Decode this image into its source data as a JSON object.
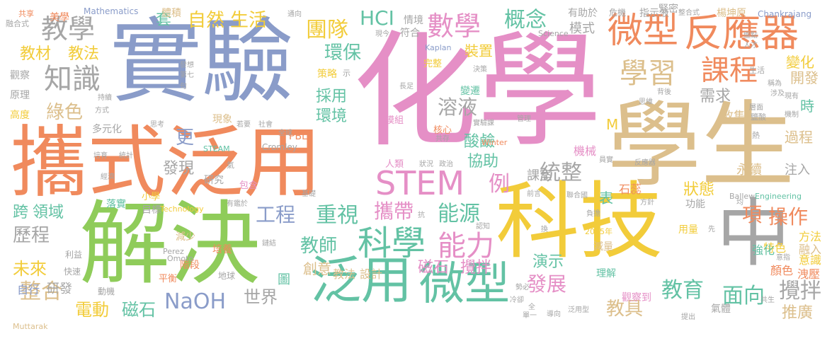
{
  "palette": {
    "green": "#8fcc5a",
    "orange": "#f08a5d",
    "blue": "#8a9cc9",
    "pink": "#e58fc6",
    "yellow": "#f2cc3a",
    "tan": "#dcbf8c",
    "teal": "#63c2a4",
    "gray": "#a6a6a6"
  },
  "words": [
    {
      "t": "化學",
      "c": "pink"
    },
    {
      "t": "學生",
      "c": "tan"
    },
    {
      "t": "實驗",
      "c": "blue"
    },
    {
      "t": "攜式泛用",
      "c": "orange"
    },
    {
      "t": "解決",
      "c": "green"
    },
    {
      "t": "科技",
      "c": "yellow"
    },
    {
      "t": "中",
      "c": "gray"
    },
    {
      "t": "泛用",
      "c": "teal"
    },
    {
      "t": "微型",
      "c": "teal"
    },
    {
      "t": "微型",
      "c": "orange"
    },
    {
      "t": "反應器",
      "c": "orange"
    },
    {
      "t": "學習",
      "c": "tan"
    },
    {
      "t": "課程",
      "c": "orange"
    },
    {
      "t": "STEM",
      "c": "pink"
    },
    {
      "t": "科學",
      "c": "teal"
    },
    {
      "t": "能力",
      "c": "pink"
    },
    {
      "t": "教學",
      "c": "gray"
    },
    {
      "t": "知識",
      "c": "gray"
    },
    {
      "t": "數學",
      "c": "pink"
    },
    {
      "t": "HCI",
      "c": "teal"
    },
    {
      "t": "團隊",
      "c": "yellow"
    },
    {
      "t": "概念",
      "c": "teal"
    },
    {
      "t": "自然",
      "c": "yellow"
    },
    {
      "t": "生活",
      "c": "yellow"
    },
    {
      "t": "教材",
      "c": "yellow"
    },
    {
      "t": "教法",
      "c": "yellow"
    },
    {
      "t": "綠色",
      "c": "tan"
    },
    {
      "t": "環保",
      "c": "teal"
    },
    {
      "t": "溶液",
      "c": "gray"
    },
    {
      "t": "採用",
      "c": "teal"
    },
    {
      "t": "環境",
      "c": "teal"
    },
    {
      "t": "工程",
      "c": "blue"
    },
    {
      "t": "重視",
      "c": "teal"
    },
    {
      "t": "攜帶",
      "c": "pink"
    },
    {
      "t": "能源",
      "c": "teal"
    },
    {
      "t": "酸鹼",
      "c": "teal"
    },
    {
      "t": "協助",
      "c": "teal"
    },
    {
      "t": "統整",
      "c": "gray"
    },
    {
      "t": "課室",
      "c": "gray"
    },
    {
      "t": "教師",
      "c": "teal"
    },
    {
      "t": "教育",
      "c": "teal"
    },
    {
      "t": "教具",
      "c": "tan"
    },
    {
      "t": "面向",
      "c": "teal"
    },
    {
      "t": "攪拌",
      "c": "gray"
    },
    {
      "t": "推廣",
      "c": "tan"
    },
    {
      "t": "操作",
      "c": "orange"
    },
    {
      "t": "項",
      "c": "orange"
    },
    {
      "t": "發展",
      "c": "pink"
    },
    {
      "t": "演示",
      "c": "teal"
    },
    {
      "t": "狀態",
      "c": "yellow"
    },
    {
      "t": "需求",
      "c": "gray"
    },
    {
      "t": "過程",
      "c": "tan"
    },
    {
      "t": "NaOH",
      "c": "blue"
    },
    {
      "t": "世界",
      "c": "gray"
    },
    {
      "t": "電動",
      "c": "yellow"
    },
    {
      "t": "磁石",
      "c": "teal"
    },
    {
      "t": "磁石",
      "c": "pink"
    },
    {
      "t": "攪拌",
      "c": "pink"
    },
    {
      "t": "整合",
      "c": "tan"
    },
    {
      "t": "歷程",
      "c": "gray"
    },
    {
      "t": "未來",
      "c": "yellow"
    },
    {
      "t": "跨",
      "c": "teal"
    },
    {
      "t": "領域",
      "c": "teal"
    },
    {
      "t": "發現",
      "c": "gray"
    },
    {
      "t": "更",
      "c": "blue"
    },
    {
      "t": "例",
      "c": "pink"
    },
    {
      "t": "開發",
      "c": "tan"
    },
    {
      "t": "變化",
      "c": "yellow"
    },
    {
      "t": "裝置",
      "c": "yellow"
    },
    {
      "t": "模式",
      "c": "gray"
    },
    {
      "t": "套",
      "c": "teal"
    },
    {
      "t": "創意",
      "c": "tan"
    },
    {
      "t": "教法",
      "c": "tan"
    },
    {
      "t": "設計",
      "c": "tan"
    },
    {
      "t": "自行",
      "c": "blue"
    },
    {
      "t": "研發",
      "c": "gray"
    },
    {
      "t": "圖",
      "c": "teal"
    },
    {
      "t": "注入",
      "c": "gray"
    },
    {
      "t": "永續",
      "c": "tan"
    },
    {
      "t": "時",
      "c": "teal"
    },
    {
      "t": "收集",
      "c": "tan"
    },
    {
      "t": "機械",
      "c": "pink"
    },
    {
      "t": "石蕊",
      "c": "orange"
    },
    {
      "t": "表",
      "c": "teal"
    },
    {
      "t": "M",
      "c": "yellow"
    },
    {
      "t": "意識",
      "c": "yellow"
    },
    {
      "t": "方法",
      "c": "yellow"
    },
    {
      "t": "融入",
      "c": "tan"
    },
    {
      "t": "特色",
      "c": "yellow"
    },
    {
      "t": "強化",
      "c": "teal"
    },
    {
      "t": "顏色",
      "c": "orange"
    },
    {
      "t": "洩壓",
      "c": "orange"
    },
    {
      "t": "氣體",
      "c": "gray"
    },
    {
      "t": "用量",
      "c": "yellow"
    },
    {
      "t": "減量",
      "c": "tan"
    },
    {
      "t": "觀察到",
      "c": "pink"
    },
    {
      "t": "理解",
      "c": "teal"
    },
    {
      "t": "功能",
      "c": "gray"
    },
    {
      "t": "緊密",
      "c": "gray"
    },
    {
      "t": "有助於",
      "c": "gray"
    },
    {
      "t": "危機",
      "c": "gray"
    },
    {
      "t": "指示液",
      "c": "gray"
    },
    {
      "t": "楊坤原",
      "c": "tan"
    },
    {
      "t": "情境",
      "c": "gray"
    },
    {
      "t": "符合",
      "c": "gray"
    },
    {
      "t": "體積",
      "c": "tan"
    },
    {
      "t": "美學",
      "c": "orange"
    },
    {
      "t": "觀察",
      "c": "gray"
    },
    {
      "t": "原理",
      "c": "gray"
    },
    {
      "t": "高度",
      "c": "yellow"
    },
    {
      "t": "多元化",
      "c": "gray"
    },
    {
      "t": "策略",
      "c": "yellow"
    },
    {
      "t": "完整",
      "c": "yellow"
    },
    {
      "t": "變遷",
      "c": "teal"
    },
    {
      "t": "核心",
      "c": "orange"
    },
    {
      "t": "模組",
      "c": "pink"
    },
    {
      "t": "人類",
      "c": "pink"
    },
    {
      "t": "現象",
      "c": "tan"
    },
    {
      "t": "研究",
      "c": "gray"
    },
    {
      "t": "包含",
      "c": "pink"
    },
    {
      "t": "小學",
      "c": "yellow"
    },
    {
      "t": "落實",
      "c": "teal"
    },
    {
      "t": "目標",
      "c": "gray"
    },
    {
      "t": "減少",
      "c": "tan"
    },
    {
      "t": "培養",
      "c": "orange"
    },
    {
      "t": "階段",
      "c": "orange"
    },
    {
      "t": "平衡",
      "c": "orange"
    },
    {
      "t": "利益",
      "c": "gray"
    },
    {
      "t": "快速",
      "c": "gray"
    },
    {
      "t": "動機",
      "c": "gray"
    },
    {
      "t": "地球",
      "c": "gray"
    },
    {
      "t": "STEAM",
      "c": "teal"
    },
    {
      "t": "PBL",
      "c": "orange"
    },
    {
      "t": "Cromley",
      "c": "gray"
    },
    {
      "t": "Mathematics",
      "c": "blue"
    },
    {
      "t": "Chankrajang",
      "c": "blue"
    },
    {
      "t": "Kaplan",
      "c": "blue"
    },
    {
      "t": "Science",
      "c": "gray"
    },
    {
      "t": "Winter",
      "c": "orange"
    },
    {
      "t": "Technology",
      "c": "yellow"
    },
    {
      "t": "Engineering",
      "c": "teal"
    },
    {
      "t": "Ballew",
      "c": "gray"
    },
    {
      "t": "Perez",
      "c": "gray"
    },
    {
      "t": "Omoto",
      "c": "gray"
    },
    {
      "t": "Muttarak",
      "c": "tan"
    },
    {
      "t": "2015年",
      "c": "yellow"
    },
    {
      "t": "共享",
      "c": "orange"
    },
    {
      "t": "融合式",
      "c": "gray"
    },
    {
      "t": "通向",
      "c": "gray"
    },
    {
      "t": "現今",
      "c": "gray"
    },
    {
      "t": "決策",
      "c": "gray"
    },
    {
      "t": "長足",
      "c": "gray"
    },
    {
      "t": "實驗課",
      "c": "gray"
    },
    {
      "t": "管理",
      "c": "gray"
    },
    {
      "t": "共存",
      "c": "gray"
    },
    {
      "t": "狀況",
      "c": "gray"
    },
    {
      "t": "政治",
      "c": "gray"
    },
    {
      "t": "經濟",
      "c": "gray"
    },
    {
      "t": "培育",
      "c": "gray"
    },
    {
      "t": "統計",
      "c": "gray"
    },
    {
      "t": "有鑑於",
      "c": "gray"
    },
    {
      "t": "鏈結",
      "c": "gray"
    },
    {
      "t": "基礎",
      "c": "gray"
    },
    {
      "t": "認知",
      "c": "gray"
    },
    {
      "t": "抗",
      "c": "gray"
    },
    {
      "t": "負擔",
      "c": "gray"
    },
    {
      "t": "方針",
      "c": "gray"
    },
    {
      "t": "先",
      "c": "gray"
    },
    {
      "t": "均",
      "c": "gray"
    },
    {
      "t": "換",
      "c": "gray"
    },
    {
      "t": "勢必",
      "c": "gray"
    },
    {
      "t": "泛用型",
      "c": "gray"
    },
    {
      "t": "導向",
      "c": "gray"
    },
    {
      "t": "提出",
      "c": "gray"
    },
    {
      "t": "共生",
      "c": "gray"
    },
    {
      "t": "意指",
      "c": "gray"
    },
    {
      "t": "冷卻",
      "c": "gray"
    },
    {
      "t": "單一",
      "c": "gray"
    },
    {
      "t": "全",
      "c": "gray"
    },
    {
      "t": "反應器",
      "c": "gray"
    },
    {
      "t": "聯合國",
      "c": "gray"
    },
    {
      "t": "前言",
      "c": "gray"
    },
    {
      "t": "員實",
      "c": "gray"
    },
    {
      "t": "思維",
      "c": "gray"
    },
    {
      "t": "背後",
      "c": "gray"
    },
    {
      "t": "層面",
      "c": "gray"
    },
    {
      "t": "機制",
      "c": "gray"
    },
    {
      "t": "涉及",
      "c": "gray"
    },
    {
      "t": "現有",
      "c": "gray"
    },
    {
      "t": "鹽酸",
      "c": "gray"
    },
    {
      "t": "稱為",
      "c": "gray"
    },
    {
      "t": "生活",
      "c": "gray"
    },
    {
      "t": "熱",
      "c": "gray"
    },
    {
      "t": "人才",
      "c": "gray"
    },
    {
      "t": "盤點",
      "c": "gray"
    },
    {
      "t": "整合式",
      "c": "gray"
    },
    {
      "t": "思考",
      "c": "gray"
    },
    {
      "t": "方式",
      "c": "gray"
    },
    {
      "t": "若要",
      "c": "gray"
    },
    {
      "t": "社會",
      "c": "gray"
    },
    {
      "t": "全球",
      "c": "gray"
    },
    {
      "t": "持續",
      "c": "gray"
    },
    {
      "t": "發想",
      "c": "gray"
    },
    {
      "t": "第七",
      "c": "gray"
    },
    {
      "t": "句",
      "c": "gray"
    },
    {
      "t": "示",
      "c": "gray"
    },
    {
      "t": "氣",
      "c": "gray"
    }
  ]
}
